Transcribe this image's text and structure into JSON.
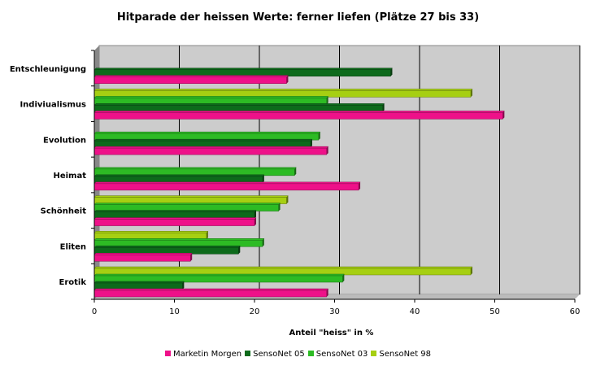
{
  "chart_data": {
    "type": "bar",
    "orientation": "horizontal",
    "title": "Hitparade der heissen Werte: ferner liefen (Plätze 27 bis 33)",
    "xlabel": "Anteil \"heiss\" in %",
    "ylabel": "",
    "xlim": [
      0,
      60
    ],
    "xticks": [
      0,
      10,
      20,
      30,
      40,
      50,
      60
    ],
    "grid": true,
    "legend_position": "bottom",
    "categories": [
      "Entschleunigung",
      "Indiviualismus",
      "Evolution",
      "Heimat",
      "Schönheit",
      "Eliten",
      "Erotik"
    ],
    "series": [
      {
        "name": "Marketin Morgen",
        "color": "#ee1189",
        "values": [
          24,
          51,
          29,
          33,
          20,
          12,
          29
        ]
      },
      {
        "name": "SensoNet 05",
        "color": "#0d6a1b",
        "values": [
          37,
          36,
          27,
          21,
          20,
          18,
          11
        ]
      },
      {
        "name": "SensoNet 03",
        "color": "#2dbb24",
        "values": [
          null,
          29,
          28,
          25,
          23,
          21,
          31
        ]
      },
      {
        "name": "SensoNet 98",
        "color": "#a6cf12",
        "values": [
          null,
          47,
          null,
          null,
          24,
          14,
          47
        ]
      }
    ]
  }
}
